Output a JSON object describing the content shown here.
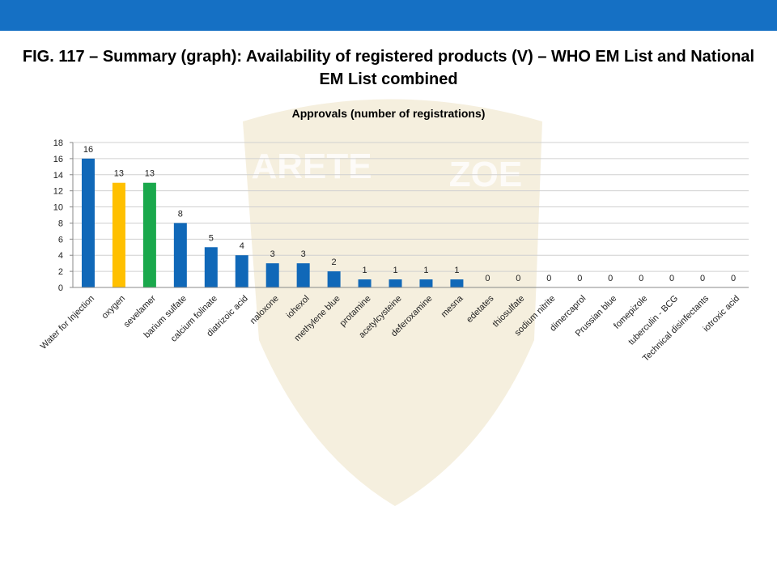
{
  "watermark": [
    "ARETE",
    "ZOE"
  ],
  "chart_data": {
    "type": "bar",
    "title": "FIG. 117 – Summary (graph): Availability of registered products (V) – WHO EM List and National EM List combined",
    "subtitle": "Approvals (number of registrations)",
    "categories": [
      "Water for Injection",
      "oxygen",
      "sevelamer",
      "barium sulfate",
      "calcium folinate",
      "diatrizoic acid",
      "naloxone",
      "iohexol",
      "methylene blue",
      "protamine",
      "acetylcysteine",
      "deferoxamine",
      "mesna",
      "edetates",
      "thiosulfate",
      "sodium nitrite",
      "dimercaprol",
      "Prussian blue",
      "fomepizole",
      "tuberculin - BCG",
      "Technical disinfectants",
      "iotroxic acid"
    ],
    "values": [
      16,
      13,
      13,
      8,
      5,
      4,
      3,
      3,
      2,
      1,
      1,
      1,
      1,
      0,
      0,
      0,
      0,
      0,
      0,
      0,
      0,
      0
    ],
    "colors": [
      "#1068b8",
      "#ffc000",
      "#1aa84c",
      "#1068b8",
      "#1068b8",
      "#1068b8",
      "#1068b8",
      "#1068b8",
      "#1068b8",
      "#1068b8",
      "#1068b8",
      "#1068b8",
      "#1068b8",
      "#1068b8",
      "#1068b8",
      "#1068b8",
      "#1068b8",
      "#1068b8",
      "#1068b8",
      "#1068b8",
      "#1068b8",
      "#1068b8"
    ],
    "ylim": [
      0,
      18
    ],
    "yticks": [
      0,
      2,
      4,
      6,
      8,
      10,
      12,
      14,
      16,
      18
    ],
    "grid": true
  }
}
